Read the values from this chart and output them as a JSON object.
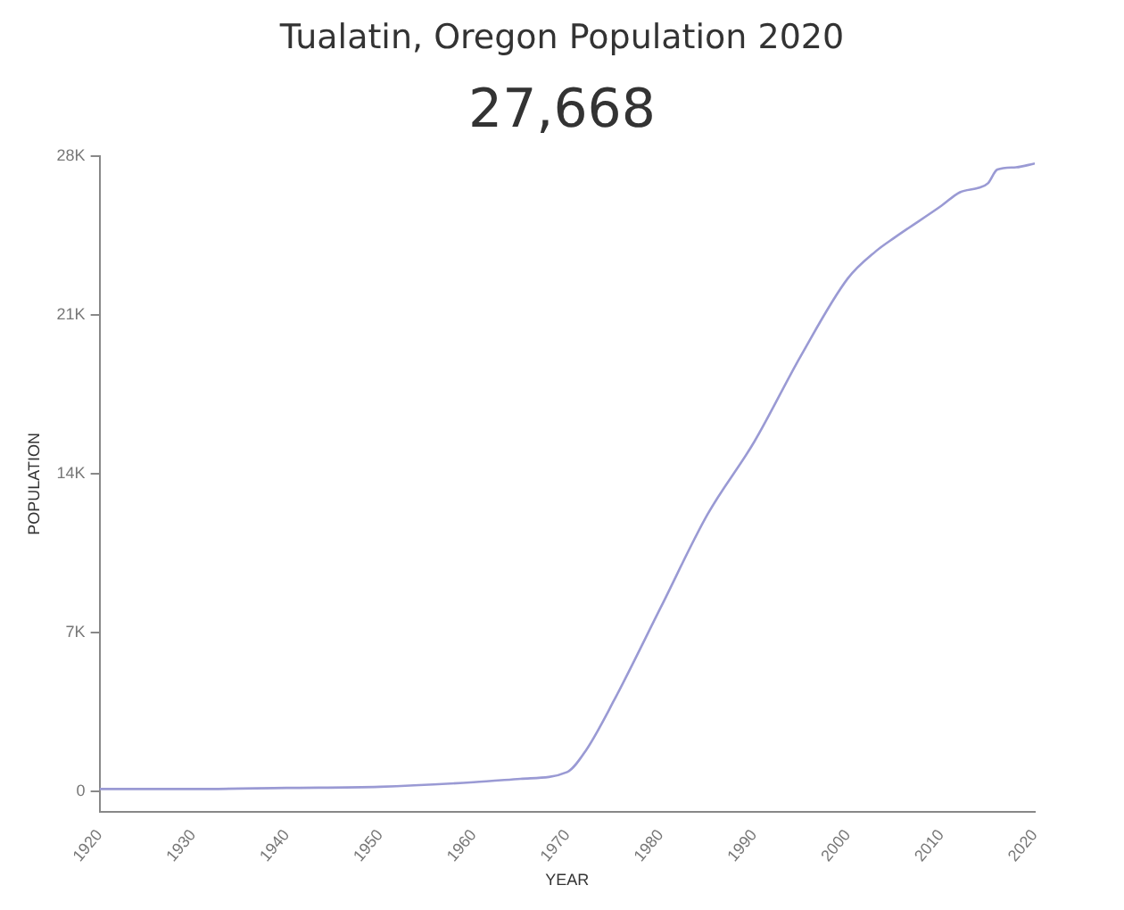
{
  "chart_data": {
    "type": "line",
    "title": "Tualatin, Oregon Population 2020",
    "subtitle": "27,668",
    "xlabel": "YEAR",
    "ylabel": "POPULATION",
    "x": [
      1920,
      1930,
      1940,
      1950,
      1960,
      1965,
      1970,
      1972,
      1975,
      1980,
      1985,
      1990,
      1995,
      2000,
      2003,
      2005,
      2010,
      2012,
      2014,
      2015,
      2016,
      2018,
      2020
    ],
    "series": [
      {
        "color": "#9a9ad4",
        "values": [
          100,
          100,
          150,
          200,
          400,
          550,
          850,
          1800,
          4000,
          8100,
          12200,
          15400,
          19200,
          22600,
          23800,
          24400,
          25800,
          26400,
          26600,
          26800,
          27400,
          27500,
          27668
        ]
      }
    ],
    "xlim": [
      1920,
      2020
    ],
    "xticks": [
      1920,
      1930,
      1940,
      1950,
      1960,
      1970,
      1980,
      1990,
      2000,
      2010,
      2020
    ],
    "ylim": [
      -900,
      28000
    ],
    "yticks": [
      {
        "value": 0,
        "label": "0"
      },
      {
        "value": 7000,
        "label": "7K"
      },
      {
        "value": 14000,
        "label": "14K"
      },
      {
        "value": 21000,
        "label": "21K"
      },
      {
        "value": 28000,
        "label": "28K"
      }
    ],
    "grid": false,
    "legend": false,
    "marker": "none",
    "line_style": "solid"
  }
}
